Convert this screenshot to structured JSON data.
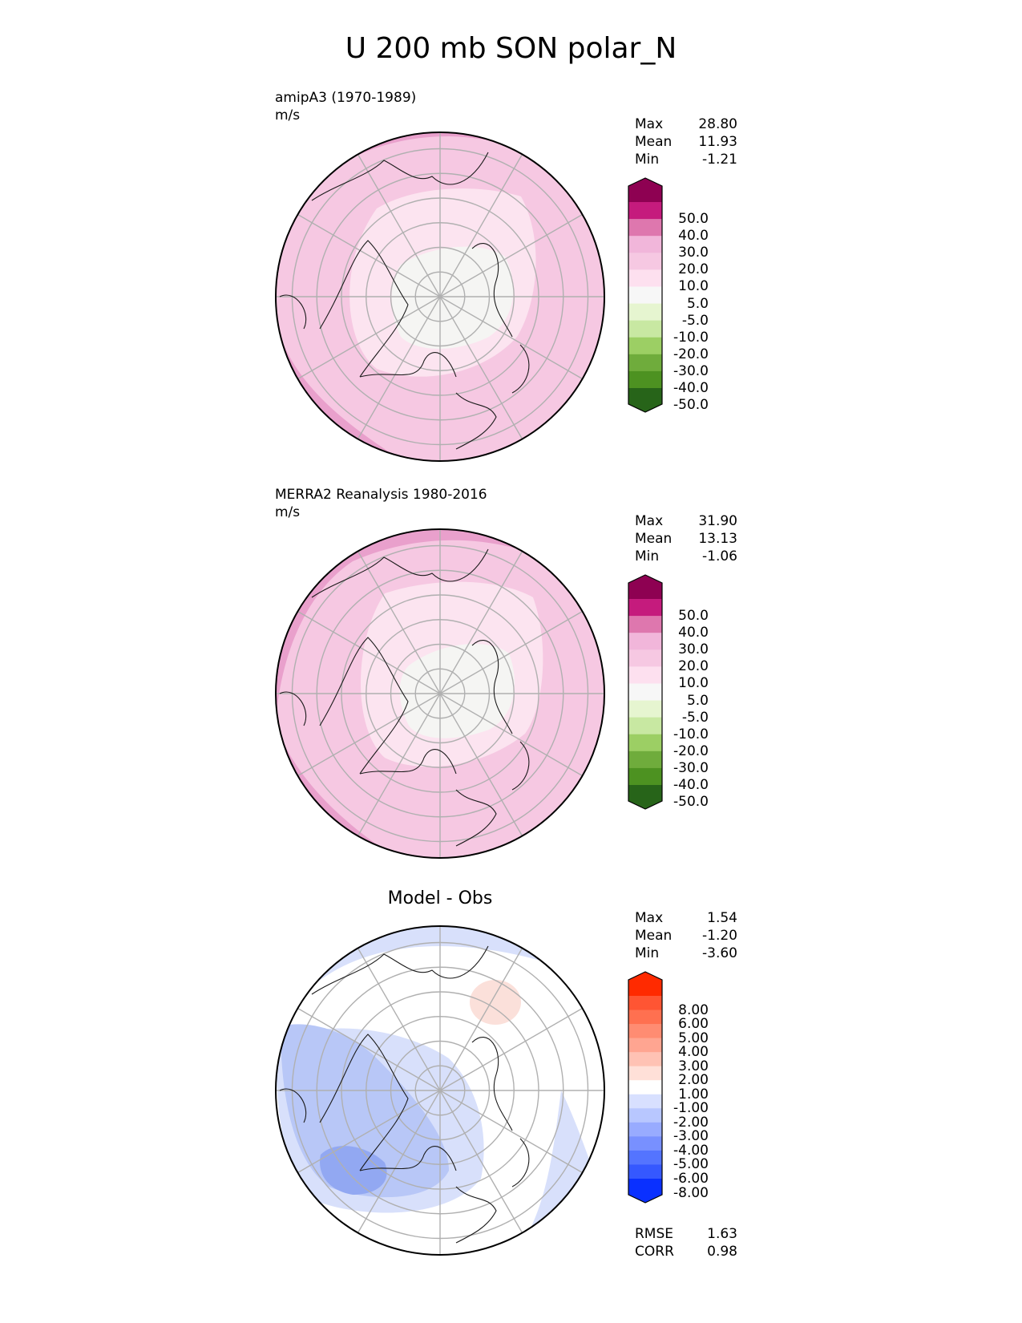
{
  "figure": {
    "title": "U 200 mb SON polar_N"
  },
  "panels": [
    {
      "id": "model",
      "label": "amipA3 (1970-1989)",
      "units": "m/s",
      "stats": [
        {
          "name": "Max",
          "value": "28.80"
        },
        {
          "name": "Mean",
          "value": "11.93"
        },
        {
          "name": "Min",
          "value": "-1.21"
        }
      ]
    },
    {
      "id": "obs",
      "label": "MERRA2 Reanalysis 1980-2016",
      "units": "m/s",
      "stats": [
        {
          "name": "Max",
          "value": "31.90"
        },
        {
          "name": "Mean",
          "value": "13.13"
        },
        {
          "name": "Min",
          "value": "-1.06"
        }
      ]
    },
    {
      "id": "diff",
      "title": "Model - Obs",
      "stats": [
        {
          "name": "Max",
          "value": "1.54"
        },
        {
          "name": "Mean",
          "value": "-1.20"
        },
        {
          "name": "Min",
          "value": "-3.60"
        }
      ],
      "metrics": [
        {
          "name": "RMSE",
          "value": "1.63"
        },
        {
          "name": "CORR",
          "value": "0.98"
        }
      ]
    }
  ],
  "colorbars": {
    "field": {
      "labels": [
        "50.0",
        "40.0",
        "30.0",
        "20.0",
        "10.0",
        "5.0",
        "-5.0",
        "-10.0",
        "-20.0",
        "-30.0",
        "-40.0",
        "-50.0"
      ],
      "colors": [
        "#8e0152",
        "#c51b7d",
        "#de77ae",
        "#f1b6da",
        "#f6c8e2",
        "#fde0ef",
        "#f7f7f7",
        "#e6f5d0",
        "#c8e8a2",
        "#9ccf64",
        "#6fac3c",
        "#4d9221",
        "#276419"
      ]
    },
    "diff": {
      "labels": [
        "8.00",
        "6.00",
        "5.00",
        "4.00",
        "3.00",
        "2.00",
        "1.00",
        "-1.00",
        "-2.00",
        "-3.00",
        "-4.00",
        "-5.00",
        "-6.00",
        "-8.00"
      ],
      "colors": [
        "#ff2a00",
        "#ff5533",
        "#ff7050",
        "#ff8c72",
        "#ffa591",
        "#ffc2b4",
        "#ffe0d8",
        "#ffffff",
        "#d8e0ff",
        "#b8c7ff",
        "#98abff",
        "#7890ff",
        "#5474ff",
        "#3558ff",
        "#0a30ff"
      ]
    }
  },
  "map_colors": {
    "field_base": "#f6c8e2",
    "field_strong": "#e9a0cc",
    "field_weak": "#fce4f0",
    "field_core": "#f5f5f3",
    "diff_base": "#ffffff",
    "diff_light": "#d8e0fb",
    "diff_mid": "#b8c7f7",
    "diff_strong": "#92a8f2",
    "diff_pos": "#fbe0da"
  }
}
